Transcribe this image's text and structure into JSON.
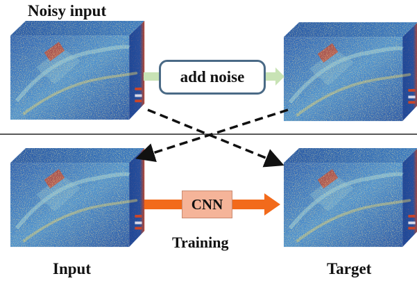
{
  "labels": {
    "noisy_input": "Noisy input",
    "add_noise": "add noise",
    "cnn": "CNN",
    "training": "Training",
    "input": "Input",
    "target": "Target"
  },
  "colors": {
    "cube_dark_blue": "#1f3f8f",
    "cube_blue": "#3a7dc4",
    "cube_light": "#9fd0d8",
    "cube_yellow": "#e6d36a",
    "cube_red": "#c9452a",
    "add_noise_arrow": "#c8e3b5",
    "add_noise_border": "#4a6a86",
    "cnn_arrow": "#f26a1b",
    "cnn_box": "#f5b499",
    "dashed_arrow": "#111111",
    "divider": "#222222"
  },
  "icons": {
    "cube": "hyperspectral-cube",
    "dashed_arrow": "dashed-arrow"
  }
}
